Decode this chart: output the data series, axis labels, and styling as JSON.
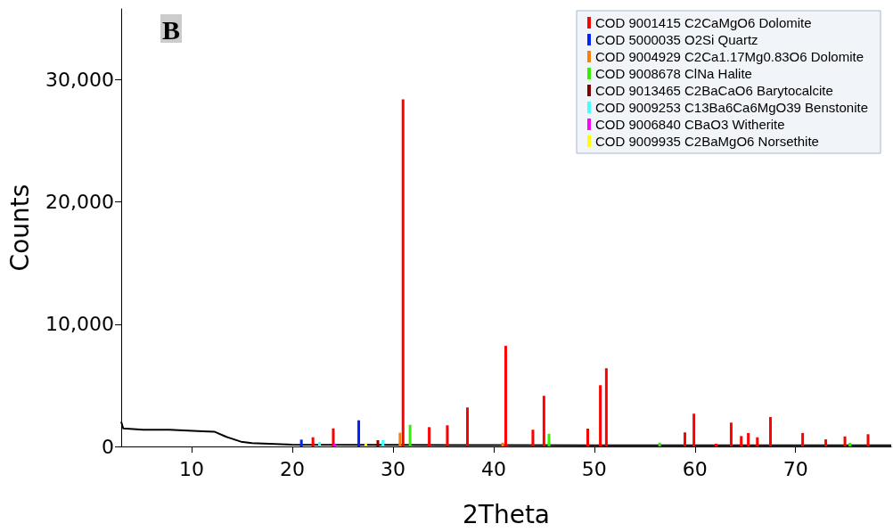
{
  "chart_data": {
    "type": "line",
    "annotations": [
      "B"
    ],
    "xlabel": "2Theta",
    "ylabel": "Counts",
    "xlim": [
      3,
      79.5
    ],
    "xticks": [
      10,
      20,
      30,
      40,
      50,
      60,
      70
    ],
    "ylim": [
      0,
      35800
    ],
    "yticks": [
      0,
      {
        "value": 10000,
        "label": "10,000"
      },
      {
        "value": 20000,
        "label": "20,000"
      },
      {
        "value": 30000,
        "label": "30,000"
      }
    ],
    "grid": false,
    "legend": "top right",
    "marker": "none",
    "series": [
      {
        "color": "#000000",
        "x": [
          3.0,
          3.2,
          5.2,
          7.8,
          11.1,
          12.3,
          13.4,
          14.9,
          16.0,
          20,
          30,
          40,
          50,
          60,
          70,
          79.5
        ],
        "values": [
          2020,
          1480,
          1370,
          1370,
          1240,
          1200,
          800,
          390,
          270,
          150,
          120,
          110,
          100,
          100,
          100,
          100
        ]
      },
      {
        "type": "bar",
        "name": "COD 9001415 C2CaMgO6 Dolomite",
        "color": "#ff0000",
        "x": [
          22.05,
          24.07,
          31.0,
          33.6,
          35.4,
          37.4,
          41.2,
          43.9,
          45.0,
          49.35,
          50.6,
          51.2,
          59.0,
          59.9,
          62.1,
          63.6,
          64.6,
          65.3,
          66.2,
          67.5,
          70.7,
          73.0,
          74.9,
          77.2
        ],
        "values": [
          750,
          1480,
          28400,
          1580,
          1730,
          3190,
          8230,
          1370,
          4140,
          1460,
          5010,
          6400,
          1150,
          2680,
          220,
          1950,
          850,
          1100,
          750,
          2410,
          1100,
          580,
          820,
          1000
        ]
      },
      {
        "type": "bar",
        "name": "COD 5000035 O2Si Quartz",
        "color": "#0022ff",
        "x": [
          20.9,
          26.6
        ],
        "values": [
          560,
          2140
        ]
      },
      {
        "type": "bar",
        "name": "COD 9004929 C2Ca1.17Mg0.83O6 Dolomite",
        "color": "#ff8000",
        "x": [
          30.7,
          40.9
        ],
        "values": [
          1120,
          310
        ]
      },
      {
        "type": "bar",
        "name": "COD 9008678 ClNa Halite",
        "color": "#33ee00",
        "x": [
          31.7,
          45.5,
          56.5,
          75.4
        ],
        "values": [
          1770,
          1040,
          310,
          300
        ]
      },
      {
        "type": "bar",
        "name": "COD 9013465 C2BaCaO6 Barytocalcite",
        "color": "#800000",
        "x": [
          28.5
        ],
        "values": [
          510
        ]
      },
      {
        "type": "bar",
        "name": "COD 9009253 C13Ba6Ca6MgO39 Benstonite",
        "color": "#44ffff",
        "x": [
          22.7,
          29.0
        ],
        "values": [
          360,
          530
        ]
      },
      {
        "type": "bar",
        "name": "COD 9006840 CBaO3 Witherite",
        "color": "#ff00ff",
        "x": [
          24.2
        ],
        "values": [
          200
        ]
      },
      {
        "type": "bar",
        "name": "COD 9009935 C2BaMgO6 Norsethite",
        "color": "#ffff00",
        "x": [
          27.3
        ],
        "values": [
          250
        ]
      }
    ]
  }
}
